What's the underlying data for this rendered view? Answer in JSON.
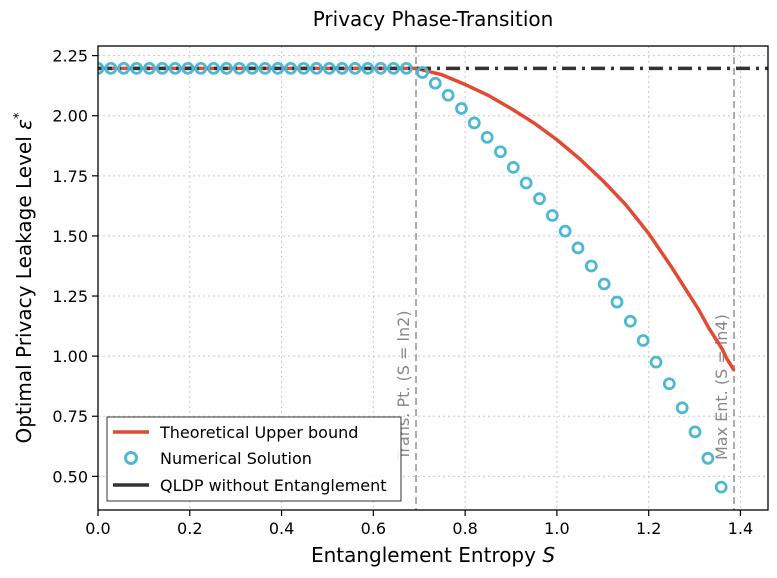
{
  "chart_data": {
    "type": "line",
    "title": "Privacy Phase-Transition",
    "xlabel_text": "Entanglement Entropy ",
    "xlabel_var": "S",
    "ylabel_text": "Optimal Privacy Leakage Level ",
    "ylabel_var": "ε",
    "ylabel_sup": "*",
    "xlim": [
      0.0,
      1.46
    ],
    "ylim": [
      0.36,
      2.29
    ],
    "xticks": [
      0.0,
      0.2,
      0.4,
      0.6,
      0.8,
      1.0,
      1.2,
      1.4
    ],
    "xtick_labels": [
      "0.0",
      "0.2",
      "0.4",
      "0.6",
      "0.8",
      "1.0",
      "1.2",
      "1.4"
    ],
    "yticks": [
      0.5,
      0.75,
      1.0,
      1.25,
      1.5,
      1.75,
      2.0,
      2.25
    ],
    "ytick_labels": [
      "0.50",
      "0.75",
      "1.00",
      "1.25",
      "1.50",
      "1.75",
      "2.00",
      "2.25"
    ],
    "grid": true,
    "legend_position": "bottom-left",
    "colors": {
      "theory": "#e24a33",
      "numerical": "#4db8d4",
      "qldp": "#333333",
      "vline": "#999999"
    },
    "vlines": [
      {
        "x": 0.693,
        "label": "Trans. Pt. (S = ln2)"
      },
      {
        "x": 1.386,
        "label": "Max Ent. (S = ln4)"
      }
    ],
    "series": [
      {
        "name": "Theoretical Upper bound",
        "style": "solid-line",
        "x": [
          0.0,
          0.693,
          0.75,
          0.8,
          0.85,
          0.9,
          0.95,
          1.0,
          1.05,
          1.1,
          1.15,
          1.2,
          1.25,
          1.28,
          1.31,
          1.33,
          1.35,
          1.36,
          1.37,
          1.375,
          1.38,
          1.383,
          1.386
        ],
        "values": [
          2.197,
          2.197,
          2.17,
          2.13,
          2.085,
          2.03,
          1.97,
          1.9,
          1.82,
          1.73,
          1.63,
          1.51,
          1.37,
          1.28,
          1.19,
          1.12,
          1.06,
          1.03,
          0.99,
          0.975,
          0.96,
          0.95,
          0.94
        ]
      },
      {
        "name": "Numerical Solution",
        "style": "open-circles",
        "x": [
          0.0,
          0.028,
          0.056,
          0.084,
          0.112,
          0.14,
          0.168,
          0.196,
          0.224,
          0.252,
          0.28,
          0.308,
          0.336,
          0.364,
          0.392,
          0.42,
          0.448,
          0.476,
          0.504,
          0.532,
          0.56,
          0.588,
          0.616,
          0.644,
          0.672,
          0.707,
          0.735,
          0.763,
          0.792,
          0.82,
          0.848,
          0.877,
          0.905,
          0.933,
          0.962,
          0.99,
          1.018,
          1.046,
          1.075,
          1.103,
          1.131,
          1.16,
          1.188,
          1.216,
          1.245,
          1.273,
          1.301,
          1.329,
          1.358
        ],
        "values": [
          2.197,
          2.197,
          2.197,
          2.197,
          2.197,
          2.197,
          2.197,
          2.197,
          2.197,
          2.197,
          2.197,
          2.197,
          2.197,
          2.197,
          2.197,
          2.197,
          2.197,
          2.197,
          2.197,
          2.197,
          2.197,
          2.197,
          2.197,
          2.197,
          2.197,
          2.18,
          2.135,
          2.085,
          2.03,
          1.97,
          1.91,
          1.85,
          1.785,
          1.72,
          1.655,
          1.585,
          1.52,
          1.45,
          1.375,
          1.3,
          1.225,
          1.145,
          1.065,
          0.975,
          0.885,
          0.785,
          0.685,
          0.575,
          0.455
        ]
      },
      {
        "name": "QLDP without Entanglement",
        "style": "dash-dot",
        "x": [
          0.0,
          1.46
        ],
        "values": [
          2.197,
          2.197
        ]
      }
    ]
  }
}
